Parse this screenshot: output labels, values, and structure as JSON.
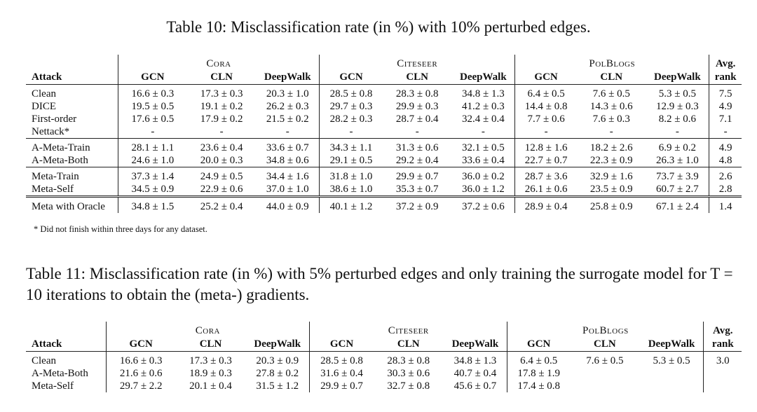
{
  "table10": {
    "caption": "Table 10: Misclassification rate (in %) with 10% perturbed edges.",
    "groups": [
      "Cora",
      "Citeseer",
      "PolBlogs"
    ],
    "sub_headers": [
      "GCN",
      "CLN",
      "DeepWalk"
    ],
    "attack_header": "Attack",
    "rank_header_1": "Avg.",
    "rank_header_2": "rank",
    "blocks": [
      [
        [
          "Clean",
          "16.6 ± 0.3",
          "17.3 ± 0.3",
          "20.3 ± 1.0",
          "28.5 ± 0.8",
          "28.3 ± 0.8",
          "34.8 ± 1.3",
          "6.4 ± 0.5",
          "7.6 ± 0.5",
          "5.3 ± 0.5",
          "7.5"
        ],
        [
          "DICE",
          "19.5 ± 0.5",
          "19.1 ± 0.2",
          "26.2 ± 0.3",
          "29.7 ± 0.3",
          "29.9 ± 0.3",
          "41.2 ± 0.3",
          "14.4 ± 0.8",
          "14.3 ± 0.6",
          "12.9 ± 0.3",
          "4.9"
        ],
        [
          "First-order",
          "17.6 ± 0.5",
          "17.9 ± 0.2",
          "21.5 ± 0.2",
          "28.2 ± 0.3",
          "28.7 ± 0.4",
          "32.4 ± 0.4",
          "7.7 ± 0.6",
          "7.6 ± 0.3",
          "8.2 ± 0.6",
          "7.1"
        ],
        [
          "Nettack*",
          "-",
          "-",
          "-",
          "-",
          "-",
          "-",
          "-",
          "-",
          "-",
          "-"
        ]
      ],
      [
        [
          "A-Meta-Train",
          "28.1 ± 1.1",
          "23.6 ± 0.4",
          "33.6 ± 0.7",
          "34.3 ± 1.1",
          "31.3 ± 0.6",
          "32.1 ± 0.5",
          "12.8 ± 1.6",
          "18.2 ± 2.6",
          "6.9 ± 0.2",
          "4.9"
        ],
        [
          "A-Meta-Both",
          "24.6 ± 1.0",
          "20.0 ± 0.3",
          "34.8 ± 0.6",
          "29.1 ± 0.5",
          "29.2 ± 0.4",
          "33.6 ± 0.4",
          "22.7 ± 0.7",
          "22.3 ± 0.9",
          "26.3 ± 1.0",
          "4.8"
        ]
      ],
      [
        [
          "Meta-Train",
          "37.3 ± 1.4",
          "24.9 ± 0.5",
          "34.4 ± 1.6",
          "31.8 ± 1.0",
          "29.9 ± 0.7",
          "36.0 ± 0.2",
          "28.7 ± 3.6",
          "32.9 ± 1.6",
          "73.7 ± 3.9",
          "2.6"
        ],
        [
          "Meta-Self",
          "34.5 ± 0.9",
          "22.9 ± 0.6",
          "37.0 ± 1.0",
          "38.6 ± 1.0",
          "35.3 ± 0.7",
          "36.0 ± 1.2",
          "26.1 ± 0.6",
          "23.5 ± 0.9",
          "60.7 ± 2.7",
          "2.8"
        ]
      ],
      [
        [
          "Meta with Oracle",
          "34.8 ± 1.5",
          "25.2 ± 0.4",
          "44.0 ± 0.9",
          "40.1 ± 1.2",
          "37.2 ± 0.9",
          "37.2 ± 0.6",
          "28.9 ± 0.4",
          "25.8 ± 0.9",
          "67.1 ± 2.4",
          "1.4"
        ]
      ]
    ],
    "footnote": "* Did not finish within three days for any dataset."
  },
  "table11": {
    "caption": "Table 11: Misclassification rate (in %) with 5% perturbed edges and only training the surrogate model for T = 10 iterations to obtain the (meta-) gradients.",
    "groups": [
      "Cora",
      "Citeseer",
      "PolBlogs"
    ],
    "sub_headers": [
      "GCN",
      "CLN",
      "DeepWalk"
    ],
    "attack_header": "Attack",
    "rank_header_1": "Avg.",
    "rank_header_2": "rank",
    "rows": [
      [
        "Clean",
        "16.6 ± 0.3",
        "17.3 ± 0.3",
        "20.3 ± 0.9",
        "28.5 ± 0.8",
        "28.3 ± 0.8",
        "34.8 ± 1.3",
        "6.4 ± 0.5",
        "7.6 ± 0.5",
        "5.3 ± 0.5",
        "3.0"
      ],
      [
        "A-Meta-Both",
        "21.6 ± 0.6",
        "18.9 ± 0.3",
        "27.8 ± 0.2",
        "31.6 ± 0.4",
        "30.3 ± 0.6",
        "40.7 ± 0.4",
        "17.8 ± 1.9",
        "",
        "",
        ""
      ],
      [
        "Meta-Self",
        "29.7 ± 2.2",
        "20.1 ± 0.4",
        "31.5 ± 1.2",
        "29.9 ± 0.7",
        "32.7 ± 0.8",
        "45.6 ± 0.7",
        "17.4 ± 0.8",
        "",
        "",
        ""
      ]
    ]
  }
}
